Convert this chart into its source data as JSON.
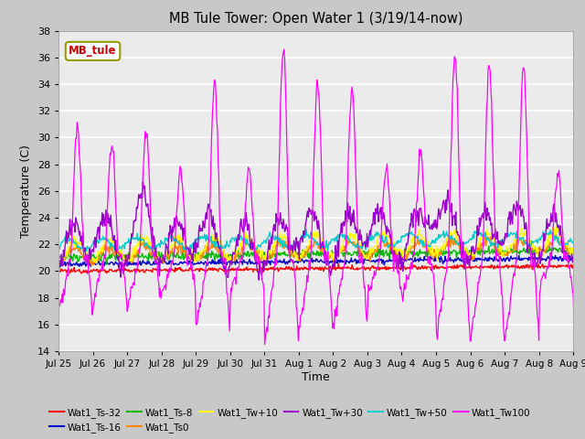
{
  "title": "MB Tule Tower: Open Water 1 (3/19/14-now)",
  "xlabel": "Time",
  "ylabel": "Temperature (C)",
  "ylim": [
    14,
    38
  ],
  "yticks": [
    14,
    16,
    18,
    20,
    22,
    24,
    26,
    28,
    30,
    32,
    34,
    36,
    38
  ],
  "plot_bg_color": "#ebebeb",
  "fig_bg_color": "#c8c8c8",
  "legend_label": "MB_tule",
  "series_colors": {
    "Wat1_Ts-32": "#ff0000",
    "Wat1_Ts-16": "#0000cc",
    "Wat1_Ts-8": "#00bb00",
    "Wat1_Ts0": "#ff8800",
    "Wat1_Tw+10": "#ffff00",
    "Wat1_Tw+30": "#9900cc",
    "Wat1_Tw+50": "#00cccc",
    "Wat1_Tw100": "#ff00ff"
  },
  "xtick_labels": [
    "Jul 25",
    "Jul 26",
    "Jul 27",
    "Jul 28",
    "Jul 29",
    "Jul 30",
    "Jul 31",
    "Aug 1",
    "Aug 2",
    "Aug 3",
    "Aug 4",
    "Aug 5",
    "Aug 6",
    "Aug 7",
    "Aug 8",
    "Aug 9"
  ],
  "xtick_positions": [
    0,
    1,
    2,
    3,
    4,
    5,
    6,
    7,
    8,
    9,
    10,
    11,
    12,
    13,
    14,
    15
  ]
}
